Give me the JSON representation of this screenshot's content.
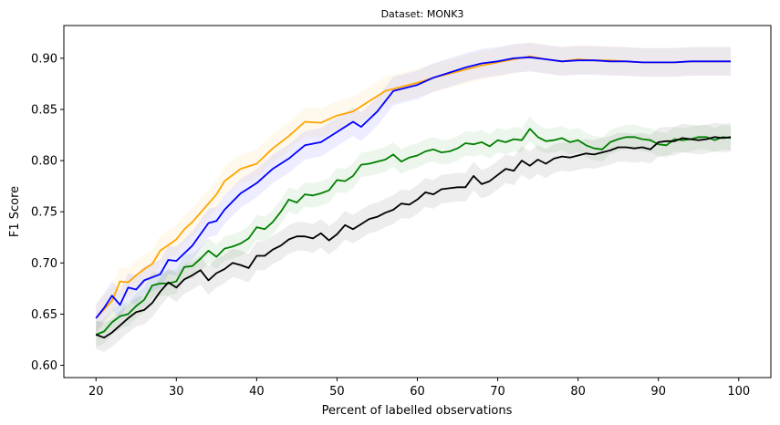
{
  "chart_data": {
    "type": "line",
    "title": "Dataset: MONK3",
    "xlabel": "Percent of labelled observations",
    "ylabel": "F1 Score",
    "xlim": [
      16,
      104
    ],
    "ylim": [
      0.588,
      0.932
    ],
    "xticks": [
      20,
      30,
      40,
      50,
      60,
      70,
      80,
      90,
      100
    ],
    "yticks": [
      0.6,
      0.65,
      0.7,
      0.75,
      0.8,
      0.85,
      0.9
    ],
    "grid": false,
    "legend": "none",
    "series": [
      {
        "color": "#ffa500",
        "band_width": 0.014,
        "points": [
          [
            20,
            0.646
          ],
          [
            22,
            0.663
          ],
          [
            23,
            0.682
          ],
          [
            24,
            0.681
          ],
          [
            25,
            0.688
          ],
          [
            26,
            0.694
          ],
          [
            27,
            0.699
          ],
          [
            28,
            0.712
          ],
          [
            30,
            0.723
          ],
          [
            31,
            0.733
          ],
          [
            32,
            0.74
          ],
          [
            33,
            0.749
          ],
          [
            35,
            0.767
          ],
          [
            36,
            0.78
          ],
          [
            38,
            0.792
          ],
          [
            40,
            0.797
          ],
          [
            42,
            0.812
          ],
          [
            44,
            0.824
          ],
          [
            46,
            0.838
          ],
          [
            48,
            0.837
          ],
          [
            50,
            0.844
          ],
          [
            52,
            0.848
          ],
          [
            54,
            0.858
          ],
          [
            56,
            0.868
          ],
          [
            58,
            0.872
          ],
          [
            60,
            0.876
          ],
          [
            62,
            0.881
          ],
          [
            64,
            0.885
          ],
          [
            66,
            0.889
          ],
          [
            68,
            0.893
          ],
          [
            70,
            0.896
          ],
          [
            72,
            0.899
          ],
          [
            74,
            0.902
          ],
          [
            76,
            0.899
          ],
          [
            78,
            0.897
          ],
          [
            80,
            0.899
          ],
          [
            82,
            0.898
          ],
          [
            84,
            0.898
          ],
          [
            86,
            0.897
          ],
          [
            88,
            0.896
          ],
          [
            90,
            0.896
          ],
          [
            92,
            0.896
          ],
          [
            94,
            0.897
          ],
          [
            96,
            0.897
          ],
          [
            98,
            0.897
          ],
          [
            99,
            0.897
          ]
        ]
      },
      {
        "color": "#0000ff",
        "band_width": 0.014,
        "points": [
          [
            20,
            0.646
          ],
          [
            21,
            0.656
          ],
          [
            22,
            0.668
          ],
          [
            23,
            0.659
          ],
          [
            24,
            0.676
          ],
          [
            25,
            0.674
          ],
          [
            26,
            0.683
          ],
          [
            28,
            0.689
          ],
          [
            29,
            0.703
          ],
          [
            30,
            0.702
          ],
          [
            32,
            0.717
          ],
          [
            33,
            0.728
          ],
          [
            34,
            0.739
          ],
          [
            35,
            0.741
          ],
          [
            36,
            0.752
          ],
          [
            38,
            0.768
          ],
          [
            40,
            0.778
          ],
          [
            42,
            0.792
          ],
          [
            44,
            0.802
          ],
          [
            46,
            0.815
          ],
          [
            48,
            0.818
          ],
          [
            50,
            0.828
          ],
          [
            52,
            0.838
          ],
          [
            53,
            0.833
          ],
          [
            55,
            0.848
          ],
          [
            57,
            0.868
          ],
          [
            60,
            0.874
          ],
          [
            62,
            0.881
          ],
          [
            64,
            0.886
          ],
          [
            66,
            0.891
          ],
          [
            68,
            0.895
          ],
          [
            70,
            0.897
          ],
          [
            72,
            0.9
          ],
          [
            74,
            0.901
          ],
          [
            76,
            0.899
          ],
          [
            78,
            0.897
          ],
          [
            80,
            0.898
          ],
          [
            82,
            0.898
          ],
          [
            84,
            0.897
          ],
          [
            86,
            0.897
          ],
          [
            88,
            0.896
          ],
          [
            90,
            0.896
          ],
          [
            92,
            0.896
          ],
          [
            94,
            0.897
          ],
          [
            96,
            0.897
          ],
          [
            98,
            0.897
          ],
          [
            99,
            0.897
          ]
        ]
      },
      {
        "color": "#008000",
        "band_width": 0.012,
        "points": [
          [
            20,
            0.63
          ],
          [
            21,
            0.633
          ],
          [
            22,
            0.642
          ],
          [
            23,
            0.648
          ],
          [
            24,
            0.65
          ],
          [
            25,
            0.658
          ],
          [
            26,
            0.664
          ],
          [
            27,
            0.678
          ],
          [
            28,
            0.68
          ],
          [
            29,
            0.68
          ],
          [
            30,
            0.682
          ],
          [
            31,
            0.696
          ],
          [
            32,
            0.697
          ],
          [
            33,
            0.704
          ],
          [
            34,
            0.712
          ],
          [
            35,
            0.706
          ],
          [
            36,
            0.714
          ],
          [
            37,
            0.716
          ],
          [
            38,
            0.719
          ],
          [
            39,
            0.724
          ],
          [
            40,
            0.735
          ],
          [
            41,
            0.733
          ],
          [
            42,
            0.74
          ],
          [
            43,
            0.75
          ],
          [
            44,
            0.762
          ],
          [
            45,
            0.759
          ],
          [
            46,
            0.767
          ],
          [
            47,
            0.766
          ],
          [
            48,
            0.768
          ],
          [
            49,
            0.771
          ],
          [
            50,
            0.781
          ],
          [
            51,
            0.78
          ],
          [
            52,
            0.785
          ],
          [
            53,
            0.796
          ],
          [
            54,
            0.797
          ],
          [
            55,
            0.799
          ],
          [
            56,
            0.801
          ],
          [
            57,
            0.806
          ],
          [
            58,
            0.799
          ],
          [
            59,
            0.803
          ],
          [
            60,
            0.805
          ],
          [
            61,
            0.809
          ],
          [
            62,
            0.811
          ],
          [
            63,
            0.808
          ],
          [
            64,
            0.809
          ],
          [
            65,
            0.812
          ],
          [
            66,
            0.817
          ],
          [
            67,
            0.816
          ],
          [
            68,
            0.818
          ],
          [
            69,
            0.814
          ],
          [
            70,
            0.82
          ],
          [
            71,
            0.818
          ],
          [
            72,
            0.821
          ],
          [
            73,
            0.82
          ],
          [
            74,
            0.831
          ],
          [
            75,
            0.823
          ],
          [
            76,
            0.819
          ],
          [
            77,
            0.82
          ],
          [
            78,
            0.822
          ],
          [
            79,
            0.818
          ],
          [
            80,
            0.82
          ],
          [
            81,
            0.815
          ],
          [
            82,
            0.812
          ],
          [
            83,
            0.811
          ],
          [
            84,
            0.818
          ],
          [
            85,
            0.821
          ],
          [
            86,
            0.823
          ],
          [
            87,
            0.823
          ],
          [
            88,
            0.821
          ],
          [
            89,
            0.82
          ],
          [
            90,
            0.816
          ],
          [
            91,
            0.815
          ],
          [
            92,
            0.821
          ],
          [
            93,
            0.82
          ],
          [
            94,
            0.821
          ],
          [
            95,
            0.823
          ],
          [
            96,
            0.823
          ],
          [
            97,
            0.82
          ],
          [
            98,
            0.823
          ],
          [
            99,
            0.822
          ]
        ]
      },
      {
        "color": "#000000",
        "band_width": 0.014,
        "points": [
          [
            20,
            0.63
          ],
          [
            21,
            0.627
          ],
          [
            22,
            0.632
          ],
          [
            23,
            0.639
          ],
          [
            24,
            0.646
          ],
          [
            25,
            0.652
          ],
          [
            26,
            0.654
          ],
          [
            27,
            0.661
          ],
          [
            28,
            0.672
          ],
          [
            29,
            0.681
          ],
          [
            30,
            0.676
          ],
          [
            31,
            0.684
          ],
          [
            32,
            0.688
          ],
          [
            33,
            0.693
          ],
          [
            34,
            0.683
          ],
          [
            35,
            0.69
          ],
          [
            36,
            0.694
          ],
          [
            37,
            0.7
          ],
          [
            38,
            0.698
          ],
          [
            39,
            0.695
          ],
          [
            40,
            0.707
          ],
          [
            41,
            0.707
          ],
          [
            42,
            0.713
          ],
          [
            43,
            0.717
          ],
          [
            44,
            0.723
          ],
          [
            45,
            0.726
          ],
          [
            46,
            0.726
          ],
          [
            47,
            0.724
          ],
          [
            48,
            0.729
          ],
          [
            49,
            0.722
          ],
          [
            50,
            0.728
          ],
          [
            51,
            0.737
          ],
          [
            52,
            0.733
          ],
          [
            53,
            0.738
          ],
          [
            54,
            0.743
          ],
          [
            55,
            0.745
          ],
          [
            56,
            0.749
          ],
          [
            57,
            0.752
          ],
          [
            58,
            0.758
          ],
          [
            59,
            0.757
          ],
          [
            60,
            0.762
          ],
          [
            61,
            0.769
          ],
          [
            62,
            0.767
          ],
          [
            63,
            0.772
          ],
          [
            64,
            0.773
          ],
          [
            65,
            0.774
          ],
          [
            66,
            0.774
          ],
          [
            67,
            0.785
          ],
          [
            68,
            0.777
          ],
          [
            69,
            0.78
          ],
          [
            70,
            0.786
          ],
          [
            71,
            0.792
          ],
          [
            72,
            0.79
          ],
          [
            73,
            0.8
          ],
          [
            74,
            0.795
          ],
          [
            75,
            0.801
          ],
          [
            76,
            0.797
          ],
          [
            77,
            0.802
          ],
          [
            78,
            0.804
          ],
          [
            79,
            0.803
          ],
          [
            80,
            0.805
          ],
          [
            81,
            0.807
          ],
          [
            82,
            0.806
          ],
          [
            83,
            0.808
          ],
          [
            84,
            0.81
          ],
          [
            85,
            0.813
          ],
          [
            86,
            0.813
          ],
          [
            87,
            0.812
          ],
          [
            88,
            0.813
          ],
          [
            89,
            0.811
          ],
          [
            90,
            0.818
          ],
          [
            91,
            0.819
          ],
          [
            92,
            0.819
          ],
          [
            93,
            0.822
          ],
          [
            94,
            0.821
          ],
          [
            95,
            0.82
          ],
          [
            96,
            0.821
          ],
          [
            97,
            0.823
          ],
          [
            98,
            0.822
          ],
          [
            99,
            0.823
          ]
        ]
      }
    ]
  }
}
